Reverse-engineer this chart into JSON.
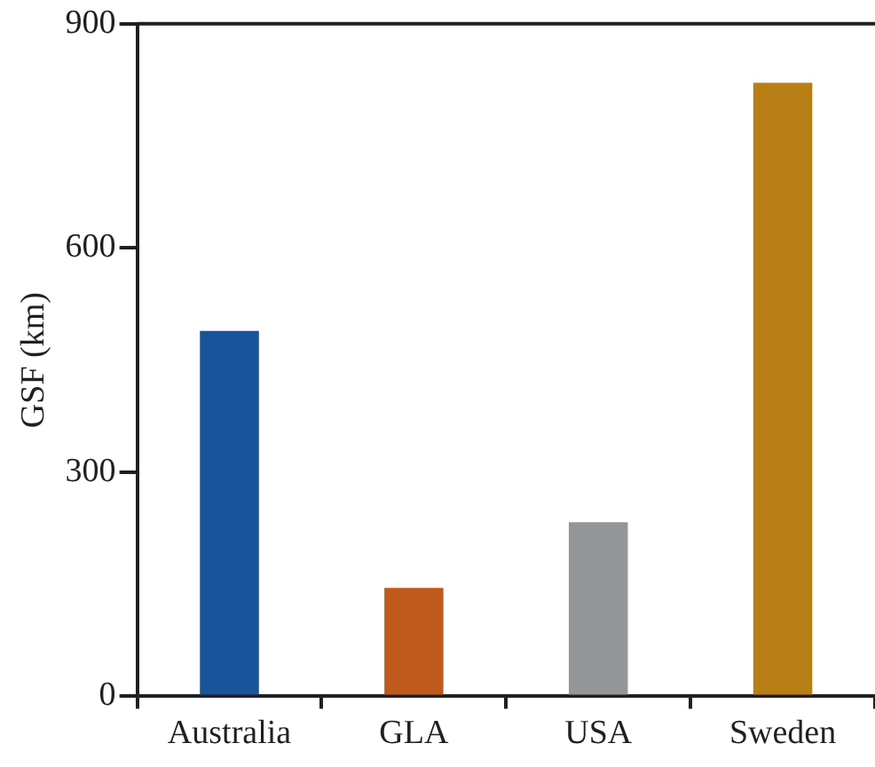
{
  "chart_data": {
    "type": "bar",
    "ylabel": "GSF (km)",
    "categories": [
      "Australia",
      "GLA",
      "USA",
      "Sweden"
    ],
    "values": [
      489,
      145,
      233,
      821
    ],
    "colors": [
      "#17549a",
      "#c05a1c",
      "#939598",
      "#b97f17"
    ],
    "ylim": [
      0,
      900
    ],
    "yticks": [
      0,
      300,
      600,
      900
    ],
    "grid": false,
    "legend": false
  }
}
